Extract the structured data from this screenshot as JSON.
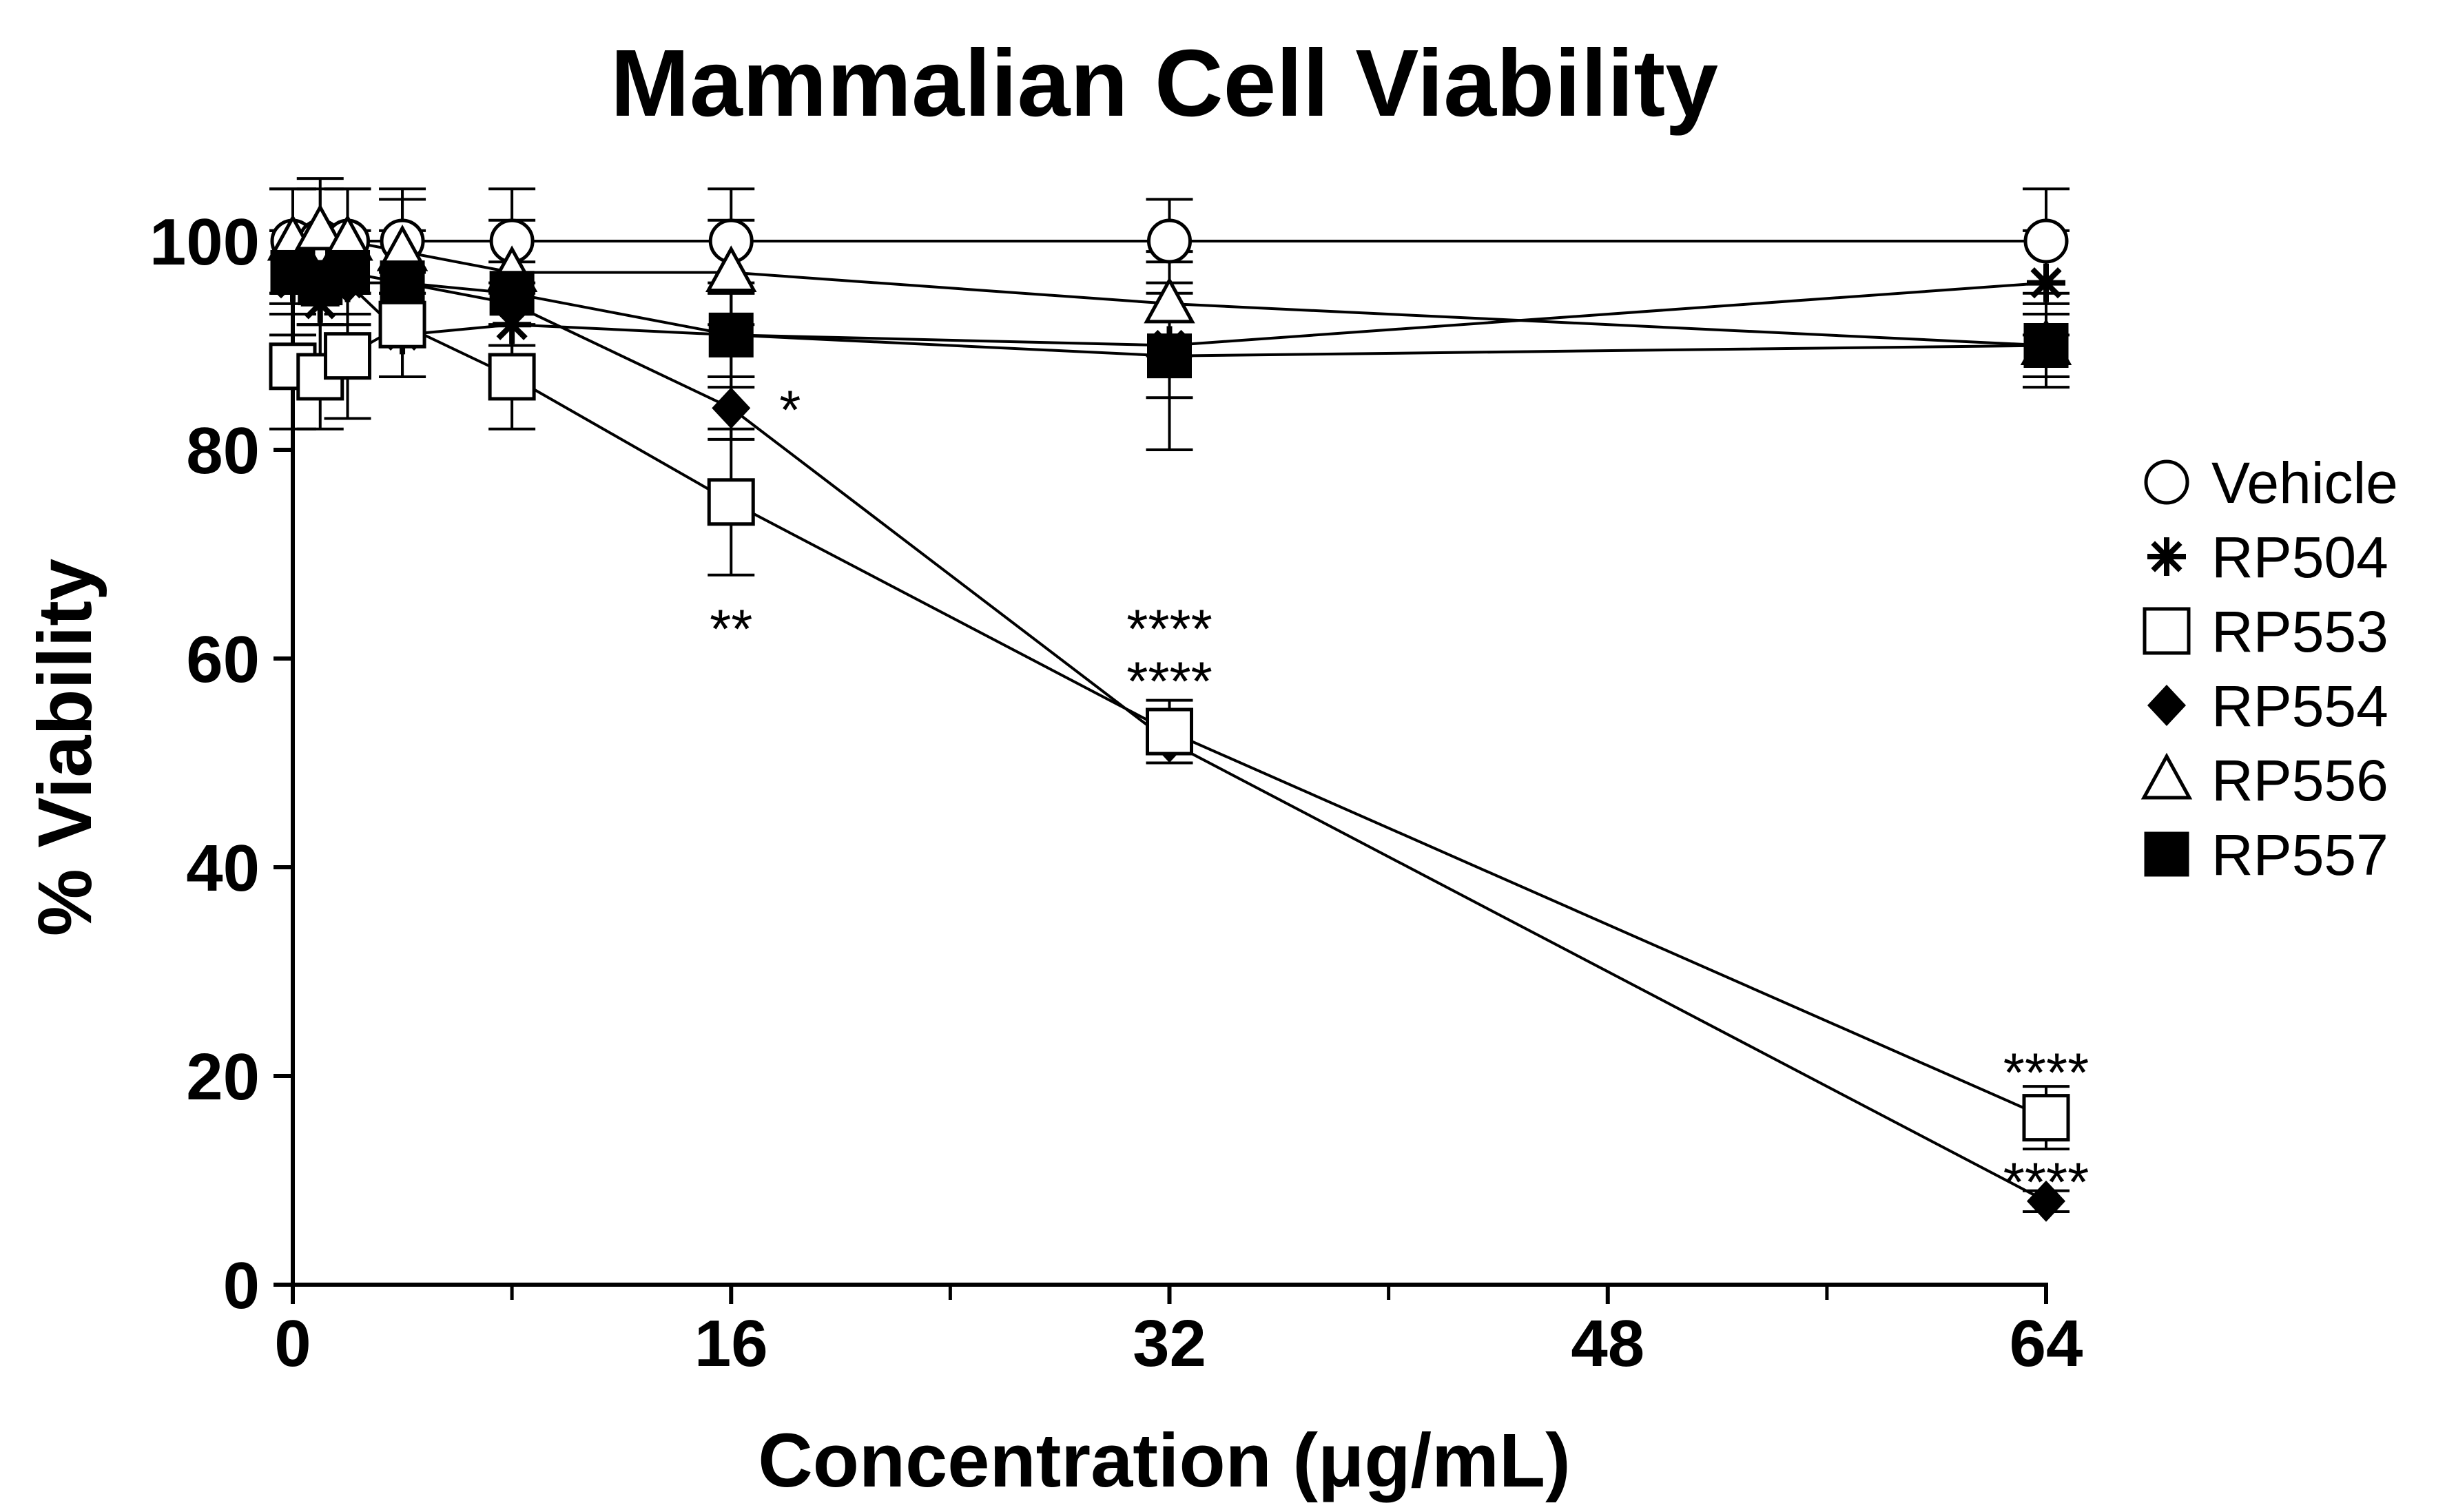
{
  "chart_data": {
    "type": "line",
    "title": "Mammalian Cell Viability",
    "xlabel": "Concentration (μg/mL)",
    "ylabel": "% Viability",
    "xlim": [
      0,
      64
    ],
    "ylim": [
      0,
      100
    ],
    "x_ticks": [
      0,
      16,
      32,
      48,
      64
    ],
    "x_tick_labels": [
      "0",
      "16",
      "32",
      "48",
      "64"
    ],
    "x_minor_ticks": [
      8,
      24,
      40,
      56
    ],
    "y_ticks": [
      0,
      20,
      40,
      60,
      80,
      100
    ],
    "y_tick_labels": [
      "0",
      "20",
      "40",
      "60",
      "80",
      "100"
    ],
    "grid": false,
    "legend_position": "right",
    "series": [
      {
        "name": "Vehicle",
        "marker": "open-circle",
        "x": [
          0,
          1,
          2,
          4,
          8,
          16,
          32,
          64
        ],
        "values": [
          100,
          100,
          100,
          100,
          100,
          100,
          100,
          100
        ],
        "error": [
          5,
          5,
          5,
          5,
          5,
          5,
          4,
          5
        ]
      },
      {
        "name": "RP504",
        "marker": "asterisk",
        "x": [
          0,
          1,
          2,
          4,
          8,
          16,
          32,
          64
        ],
        "values": [
          96,
          94,
          96,
          91,
          92,
          91,
          90,
          96
        ],
        "error": [
          5,
          5,
          4,
          4,
          4,
          4,
          5,
          5
        ]
      },
      {
        "name": "RP553",
        "marker": "open-square",
        "x": [
          0,
          1,
          2,
          4,
          8,
          16,
          32,
          64
        ],
        "values": [
          88,
          87,
          89,
          92,
          87,
          75,
          53,
          16
        ],
        "error": [
          6,
          5,
          6,
          5,
          5,
          7,
          3,
          3
        ]
      },
      {
        "name": "RP554",
        "marker": "filled-diamond",
        "x": [
          0,
          1,
          2,
          4,
          8,
          16,
          32,
          64
        ],
        "values": [
          97,
          96,
          96,
          96,
          94,
          84,
          52,
          8
        ],
        "error": [
          4,
          4,
          4,
          4,
          4,
          3,
          2,
          1
        ]
      },
      {
        "name": "RP556",
        "marker": "open-triangle",
        "x": [
          0,
          1,
          2,
          4,
          8,
          16,
          32,
          64
        ],
        "values": [
          100,
          101,
          100,
          99,
          97,
          97,
          94,
          90
        ],
        "error": [
          5,
          5,
          5,
          5,
          5,
          5,
          5,
          4
        ]
      },
      {
        "name": "RP557",
        "marker": "filled-square",
        "x": [
          0,
          1,
          2,
          4,
          8,
          16,
          32,
          64
        ],
        "values": [
          97,
          96,
          97,
          96,
          95,
          91,
          89,
          90
        ],
        "error": [
          4,
          4,
          4,
          5,
          5,
          5,
          9,
          3
        ]
      }
    ],
    "annotations": [
      {
        "text": "*",
        "x": 16,
        "y": 84,
        "anchor": "right"
      },
      {
        "text": "**",
        "x": 16,
        "y": 63,
        "anchor": "center"
      },
      {
        "text": "****",
        "x": 32,
        "y": 63,
        "anchor": "center"
      },
      {
        "text": "****",
        "x": 32,
        "y": 58,
        "anchor": "center"
      },
      {
        "text": "****",
        "x": 64,
        "y": 20.5,
        "anchor": "center"
      },
      {
        "text": "****",
        "x": 64,
        "y": 10,
        "anchor": "center"
      }
    ]
  }
}
